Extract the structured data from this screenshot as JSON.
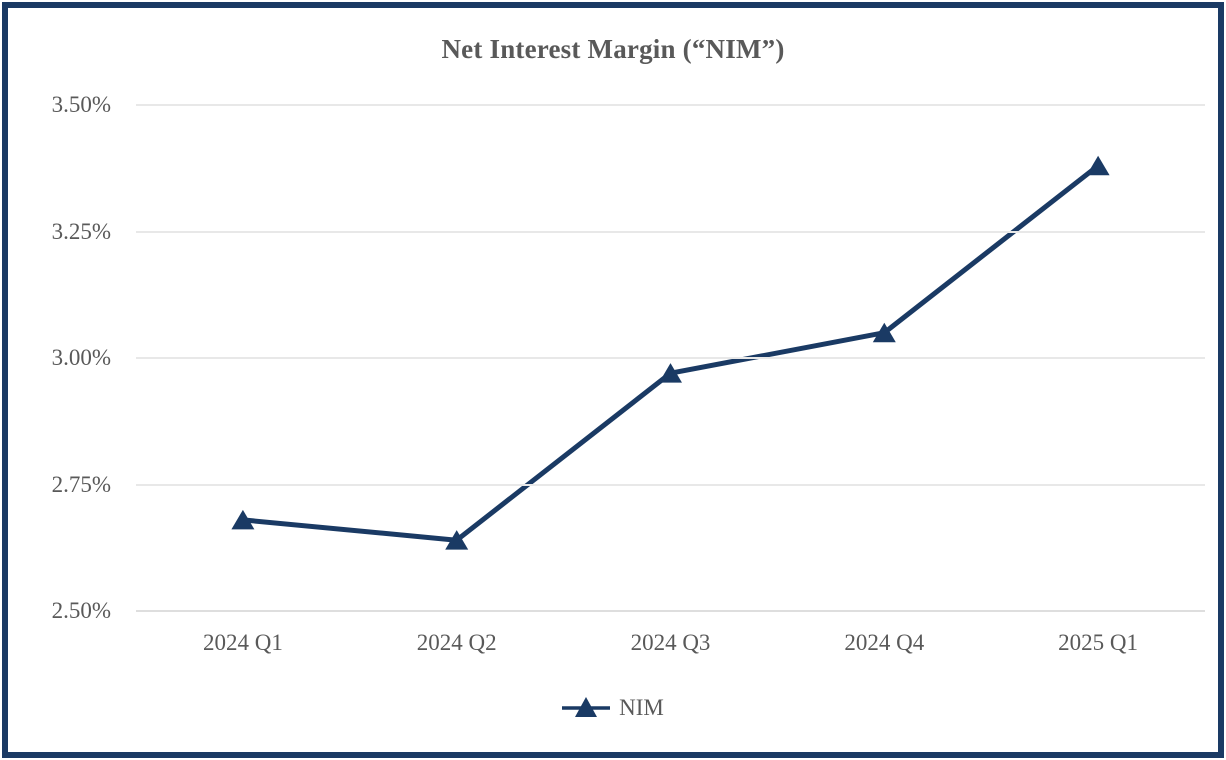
{
  "chart_data": {
    "type": "line",
    "title": "Net Interest Margin (“NIM”)",
    "categories": [
      "2024 Q1",
      "2024 Q2",
      "2024 Q3",
      "2024 Q4",
      "2025 Q1"
    ],
    "series": [
      {
        "name": "NIM",
        "values": [
          2.68,
          2.64,
          2.97,
          3.05,
          3.38
        ]
      }
    ],
    "ylim": [
      2.5,
      3.5
    ],
    "y_ticks": [
      {
        "value": 3.5,
        "label": "3.50%"
      },
      {
        "value": 3.25,
        "label": "3.25%"
      },
      {
        "value": 3.0,
        "label": "3.00%"
      },
      {
        "value": 2.75,
        "label": "2.75%"
      },
      {
        "value": 2.5,
        "label": "2.50%"
      }
    ],
    "grid": "horizontal-on",
    "marker": "triangle",
    "legend_position": "bottom",
    "legend_entries": [
      "NIM"
    ],
    "colors": {
      "series": "#1A3A64",
      "frame_border": "#1A3A64",
      "gridline": "#E8E8E8",
      "axis_line": "#DEDEDE",
      "text": "#595959"
    }
  }
}
